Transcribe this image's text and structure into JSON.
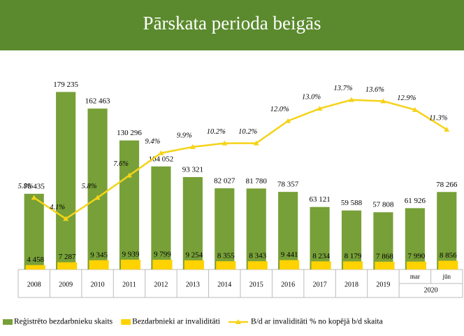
{
  "chart_data": {
    "type": "combo",
    "title": "Pārskata perioda beigās",
    "categories": [
      "2008",
      "2009",
      "2010",
      "2011",
      "2012",
      "2013",
      "2014",
      "2015",
      "2016",
      "2017",
      "2018",
      "2019",
      "mar",
      "jūn"
    ],
    "group_label": "2020",
    "ylim": [
      0,
      200000
    ],
    "y2lim": [
      0,
      16
    ],
    "legend": "bottom",
    "series": [
      {
        "name": "Reģistrēto bezdarbnieku skaits",
        "type": "bar",
        "color": "#77a038",
        "values": [
          76435,
          179235,
          162463,
          130296,
          104052,
          93321,
          82027,
          81780,
          78357,
          63121,
          59588,
          57808,
          61926,
          78266
        ],
        "value_labels": [
          "76 435",
          "179 235",
          "162 463",
          "130 296",
          "104 052",
          "93 321",
          "82 027",
          "81 780",
          "78 357",
          "63 121",
          "59 588",
          "57 808",
          "61 926",
          "78 266"
        ]
      },
      {
        "name": "Bezdarbnieki ar invaliditāti",
        "type": "bar",
        "color": "#ffd200",
        "values": [
          4458,
          7287,
          9345,
          9939,
          9799,
          9254,
          8355,
          8343,
          9441,
          8234,
          8179,
          7868,
          7990,
          8856
        ],
        "value_labels": [
          "4 458",
          "7 287",
          "9 345",
          "9 939",
          "9 799",
          "9 254",
          "8 355",
          "8 343",
          "9 441",
          "8 234",
          "8 179",
          "7 868",
          "7 990",
          "8 856"
        ]
      },
      {
        "name": "B/d ar invaliditāti % no kopējā b/d skaita",
        "type": "line",
        "axis": "y2",
        "color": "#f5d318",
        "values": [
          5.8,
          4.1,
          5.8,
          7.6,
          9.4,
          9.9,
          10.2,
          10.2,
          12.0,
          13.0,
          13.7,
          13.6,
          12.9,
          11.3
        ],
        "value_labels": [
          "5.8%",
          "4.1%",
          "5.8%",
          "7.6%",
          "9.4%",
          "9.9%",
          "10.2%",
          "10.2%",
          "12.0%",
          "13.0%",
          "13.7%",
          "13.6%",
          "12.9%",
          "11.3%"
        ]
      }
    ]
  }
}
